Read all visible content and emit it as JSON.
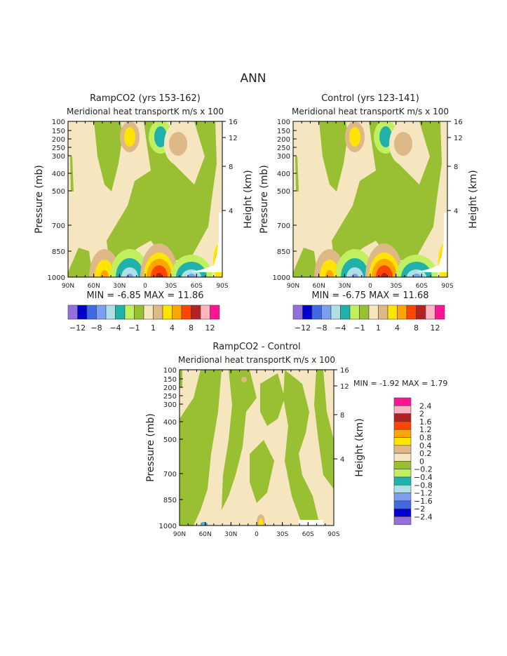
{
  "chart_data": [
    {
      "type": "heatmap",
      "title": "RampCO2 (yrs 153-162)",
      "subtitle_left": "Meridional heat transport",
      "subtitle_right": "K m/s x 100",
      "ylabel": "Pressure (mb)",
      "ylabel_right": "Height (km)",
      "x_ticks": [
        "90N",
        "60N",
        "30N",
        "0",
        "30S",
        "60S",
        "90S"
      ],
      "y_ticks": [
        "100",
        "150",
        "200",
        "250",
        "300",
        "400",
        "500",
        "700",
        "850",
        "1000"
      ],
      "y_ticks_right": [
        "16",
        "12",
        "8",
        "4"
      ],
      "min_label": "MIN =   -6.85   MAX =   11.86",
      "colorbar_labels": [
        "-12",
        "-8",
        "-4",
        "-1",
        "1",
        "4",
        "8",
        "12"
      ]
    },
    {
      "type": "heatmap",
      "title": "Control (yrs 123-141)",
      "subtitle_left": "Meridional heat transport",
      "subtitle_right": "K m/s x 100",
      "ylabel": "Pressure (mb)",
      "ylabel_right": "Height (km)",
      "x_ticks": [
        "90N",
        "60N",
        "30N",
        "0",
        "30S",
        "60S",
        "90S"
      ],
      "y_ticks": [
        "100",
        "150",
        "200",
        "250",
        "300",
        "400",
        "500",
        "700",
        "850",
        "1000"
      ],
      "y_ticks_right": [
        "16",
        "12",
        "8",
        "4"
      ],
      "min_label": "MIN =   -6.75   MAX =   11.68",
      "colorbar_labels": [
        "-12",
        "-8",
        "-4",
        "-1",
        "1",
        "4",
        "8",
        "12"
      ]
    },
    {
      "type": "heatmap",
      "title": "RampCO2 - Control",
      "subtitle_left": "Meridional heat transport",
      "subtitle_right": "K m/s x 100",
      "ylabel": "Pressure (mb)",
      "ylabel_right": "Height (km)",
      "x_ticks": [
        "90N",
        "60N",
        "30N",
        "0",
        "30S",
        "60S",
        "90S"
      ],
      "y_ticks": [
        "100",
        "150",
        "200",
        "250",
        "300",
        "400",
        "500",
        "700",
        "850",
        "1000"
      ],
      "y_ticks_right": [
        "16",
        "12",
        "8",
        "4"
      ],
      "min_label": "MIN =   -1.92   MAX =   1.79",
      "colorbar_labels": [
        "2.4",
        "2",
        "1.6",
        "1.2",
        "0.8",
        "0.4",
        "0.2",
        "0",
        "-0.2",
        "-0.4",
        "-0.8",
        "-1.2",
        "-1.6",
        "-2",
        "-2.4"
      ]
    }
  ],
  "main_title": "ANN",
  "colors": [
    "#9370DB",
    "#0000CD",
    "#4169E1",
    "#7B9EF0",
    "#B0E0E6",
    "#20B2AA",
    "#C0F060",
    "#99BF33",
    "#F5E6C0",
    "#DEB887",
    "#FFE400",
    "#FFA500",
    "#FF4500",
    "#B22222",
    "#FFB6C1",
    "#FF1493"
  ]
}
